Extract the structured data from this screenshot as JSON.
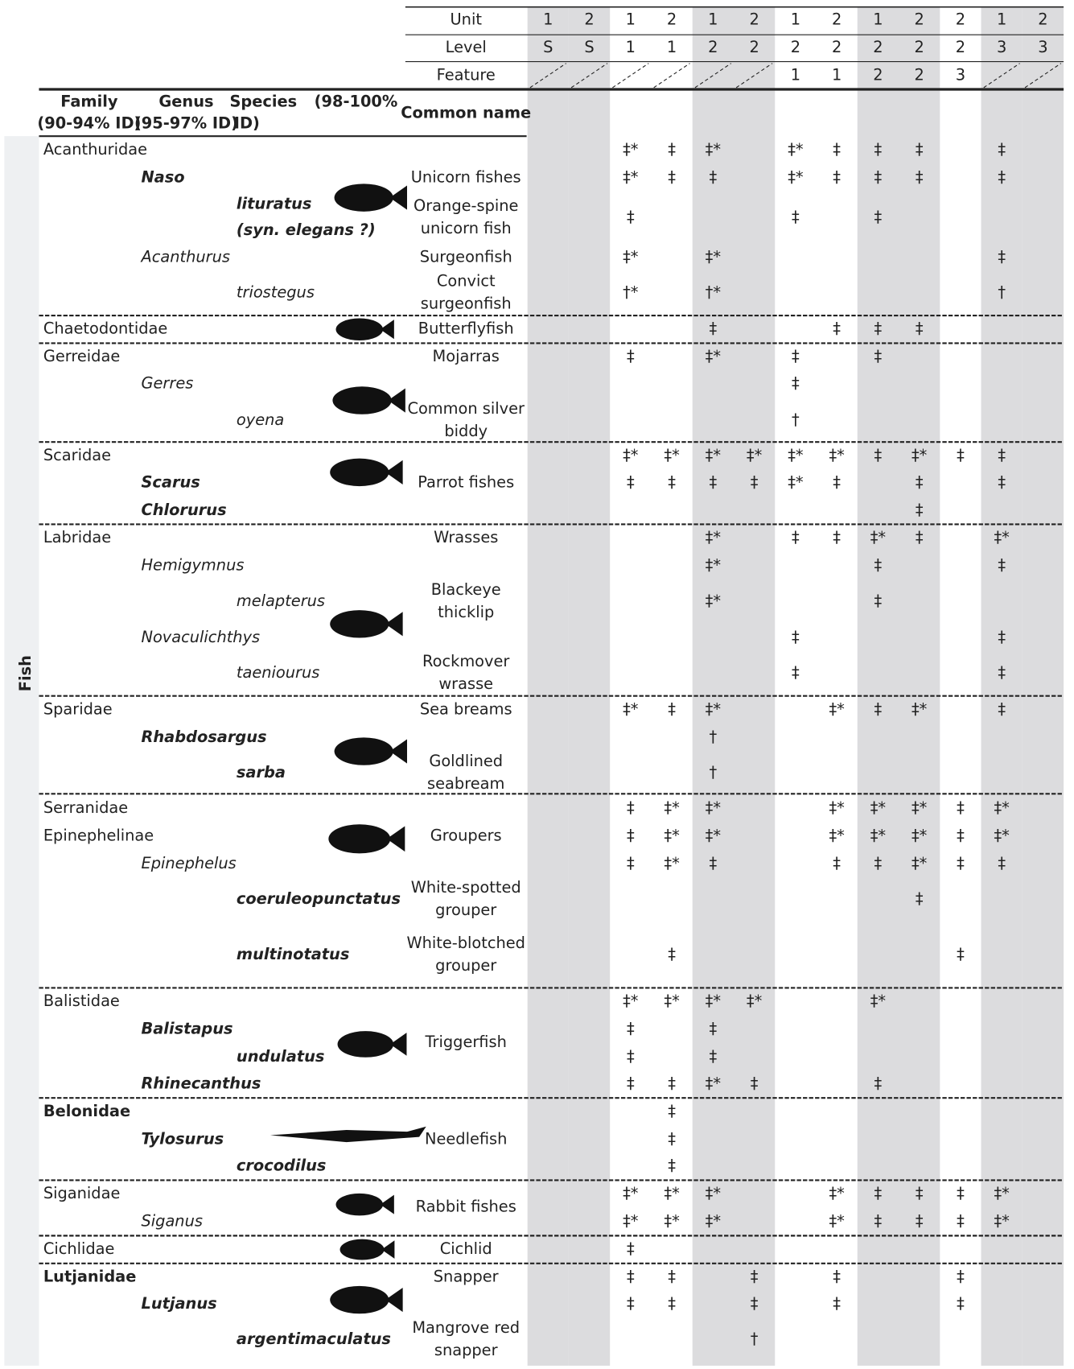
{
  "table": {
    "column_headers": {
      "row_labels": [
        "Unit",
        "Level",
        "Feature"
      ],
      "unit": [
        1,
        2,
        1,
        2,
        1,
        2,
        1,
        2,
        1,
        2,
        2,
        1,
        2
      ],
      "level": [
        "S",
        "S",
        1,
        1,
        2,
        2,
        2,
        2,
        2,
        2,
        2,
        3,
        3
      ],
      "feature": [
        null,
        null,
        null,
        null,
        null,
        null,
        1,
        1,
        2,
        2,
        3,
        null,
        null
      ]
    },
    "taxon_headers": {
      "family": [
        "Family",
        "(90-94% ID)"
      ],
      "genus": [
        "Genus",
        "(95-97% ID)"
      ],
      "species": [
        "Species",
        "(98-100%",
        "ID)"
      ],
      "common": "Common name"
    },
    "section": "Fish",
    "groups": [
      {
        "rows": [
          {
            "rank": "family",
            "bold": false,
            "name": "Acanthuridae",
            "cells": [
              null,
              null,
              "‡*",
              "‡",
              "‡*",
              null,
              "‡*",
              "‡",
              "‡",
              "‡",
              null,
              "‡",
              null
            ]
          },
          {
            "rank": "genus",
            "bold": true,
            "name": "Naso",
            "common": "Unicorn fishes",
            "cells": [
              null,
              null,
              "‡*",
              "‡",
              "‡",
              null,
              "‡*",
              "‡",
              "‡",
              "‡",
              null,
              "‡",
              null
            ]
          },
          {
            "rank": "species",
            "bold": true,
            "name": [
              "lituratus",
              "(syn. elegans ?)"
            ],
            "common": [
              "Orange-spine",
              "unicorn fish"
            ],
            "cells": [
              null,
              null,
              "‡",
              null,
              null,
              null,
              "‡",
              null,
              "‡",
              null,
              null,
              null,
              null
            ]
          },
          {
            "rank": "genus",
            "bold": false,
            "name": "Acanthurus",
            "common": "Surgeonfish",
            "cells": [
              null,
              null,
              "‡*",
              null,
              "‡*",
              null,
              null,
              null,
              null,
              null,
              null,
              "‡",
              null
            ]
          },
          {
            "rank": "species",
            "bold": false,
            "name": "triostegus",
            "common": [
              "Convict",
              "surgeonfish"
            ],
            "cells": [
              null,
              null,
              "†*",
              null,
              "†*",
              null,
              null,
              null,
              null,
              null,
              null,
              "†",
              null
            ]
          }
        ]
      },
      {
        "rows": [
          {
            "rank": "family",
            "bold": false,
            "name": "Chaetodontidae",
            "common": "Butterflyfish",
            "cells": [
              null,
              null,
              null,
              null,
              "‡",
              null,
              null,
              "‡",
              "‡",
              "‡",
              null,
              null,
              null
            ]
          }
        ]
      },
      {
        "rows": [
          {
            "rank": "family",
            "bold": false,
            "name": "Gerreidae",
            "common": "Mojarras",
            "cells": [
              null,
              null,
              "‡",
              null,
              "‡*",
              null,
              "‡",
              null,
              "‡",
              null,
              null,
              null,
              null
            ]
          },
          {
            "rank": "genus",
            "bold": false,
            "name": "Gerres",
            "cells": [
              null,
              null,
              null,
              null,
              null,
              null,
              "‡",
              null,
              null,
              null,
              null,
              null,
              null
            ]
          },
          {
            "rank": "species",
            "bold": false,
            "name": "oyena",
            "common": [
              "Common silver",
              "biddy"
            ],
            "cells": [
              null,
              null,
              null,
              null,
              null,
              null,
              "†",
              null,
              null,
              null,
              null,
              null,
              null
            ]
          }
        ]
      },
      {
        "rows": [
          {
            "rank": "family",
            "bold": false,
            "name": "Scaridae",
            "cells": [
              null,
              null,
              "‡*",
              "‡*",
              "‡*",
              "‡*",
              "‡*",
              "‡*",
              "‡",
              "‡*",
              "‡",
              "‡",
              null
            ]
          },
          {
            "rank": "genus",
            "bold": true,
            "name": "Scarus",
            "common": "Parrot fishes",
            "cells": [
              null,
              null,
              "‡",
              "‡",
              "‡",
              "‡",
              "‡*",
              "‡",
              null,
              "‡",
              null,
              "‡",
              null
            ]
          },
          {
            "rank": "genus",
            "bold": true,
            "name": "Chlorurus",
            "cells": [
              null,
              null,
              null,
              null,
              null,
              null,
              null,
              null,
              null,
              "‡",
              null,
              null,
              null
            ]
          }
        ]
      },
      {
        "rows": [
          {
            "rank": "family",
            "bold": false,
            "name": "Labridae",
            "common": "Wrasses",
            "cells": [
              null,
              null,
              null,
              null,
              "‡*",
              null,
              "‡",
              "‡",
              "‡*",
              "‡",
              null,
              "‡*",
              null
            ]
          },
          {
            "rank": "genus",
            "bold": false,
            "name": "Hemigymnus",
            "cells": [
              null,
              null,
              null,
              null,
              "‡*",
              null,
              null,
              null,
              "‡",
              null,
              null,
              "‡",
              null
            ]
          },
          {
            "rank": "species",
            "bold": false,
            "name": "melapterus",
            "common": [
              "Blackeye",
              "thicklip"
            ],
            "cells": [
              null,
              null,
              null,
              null,
              "‡*",
              null,
              null,
              null,
              "‡",
              null,
              null,
              null,
              null
            ]
          },
          {
            "rank": "genus",
            "bold": false,
            "name": "Novaculichthys",
            "cells": [
              null,
              null,
              null,
              null,
              null,
              null,
              "‡",
              null,
              null,
              null,
              null,
              "‡",
              null
            ]
          },
          {
            "rank": "species",
            "bold": false,
            "name": "taeniourus",
            "common": [
              "Rockmover",
              "wrasse"
            ],
            "cells": [
              null,
              null,
              null,
              null,
              null,
              null,
              "‡",
              null,
              null,
              null,
              null,
              "‡",
              null
            ]
          }
        ]
      },
      {
        "rows": [
          {
            "rank": "family",
            "bold": false,
            "name": "Sparidae",
            "common": "Sea breams",
            "cells": [
              null,
              null,
              "‡*",
              "‡",
              "‡*",
              null,
              null,
              "‡*",
              "‡",
              "‡*",
              null,
              "‡",
              null
            ]
          },
          {
            "rank": "genus",
            "bold": true,
            "name": "Rhabdosargus",
            "cells": [
              null,
              null,
              null,
              null,
              "†",
              null,
              null,
              null,
              null,
              null,
              null,
              null,
              null
            ]
          },
          {
            "rank": "species",
            "bold": true,
            "name": "sarba",
            "common": [
              "Goldlined",
              "seabream"
            ],
            "cells": [
              null,
              null,
              null,
              null,
              "†",
              null,
              null,
              null,
              null,
              null,
              null,
              null,
              null
            ]
          }
        ]
      },
      {
        "rows": [
          {
            "rank": "family",
            "bold": false,
            "name": "Serranidae",
            "cells": [
              null,
              null,
              "‡",
              "‡*",
              "‡*",
              null,
              null,
              "‡*",
              "‡*",
              "‡*",
              "‡",
              "‡*",
              null
            ]
          },
          {
            "rank": "family",
            "bold": false,
            "name": "Epinephelinae",
            "common": "Groupers",
            "cells": [
              null,
              null,
              "‡",
              "‡*",
              "‡*",
              null,
              null,
              "‡*",
              "‡*",
              "‡*",
              "‡",
              "‡*",
              null
            ]
          },
          {
            "rank": "genus",
            "bold": false,
            "name": "Epinephelus",
            "cells": [
              null,
              null,
              "‡",
              "‡*",
              "‡",
              null,
              null,
              "‡",
              "‡",
              "‡*",
              "‡",
              "‡",
              null
            ]
          },
          {
            "rank": "species",
            "bold": true,
            "name": "coeruleopunctatus",
            "common": [
              "White-spotted",
              "grouper"
            ],
            "cells": [
              null,
              null,
              null,
              null,
              null,
              null,
              null,
              null,
              null,
              "‡",
              null,
              null,
              null
            ]
          },
          {
            "rank": "species",
            "bold": true,
            "name": "multinotatus",
            "common": [
              "White-blotched",
              "grouper"
            ],
            "cells": [
              null,
              null,
              null,
              "‡",
              null,
              null,
              null,
              null,
              null,
              null,
              "‡",
              null,
              null
            ]
          }
        ]
      },
      {
        "common": "Triggerfish",
        "rows": [
          {
            "rank": "family",
            "bold": false,
            "name": "Balistidae",
            "cells": [
              null,
              null,
              "‡*",
              "‡*",
              "‡*",
              "‡*",
              null,
              null,
              "‡*",
              null,
              null,
              null,
              null
            ]
          },
          {
            "rank": "genus",
            "bold": true,
            "name": "Balistapus",
            "cells": [
              null,
              null,
              "‡",
              null,
              "‡",
              null,
              null,
              null,
              null,
              null,
              null,
              null,
              null
            ]
          },
          {
            "rank": "species",
            "bold": true,
            "name": "undulatus",
            "cells": [
              null,
              null,
              "‡",
              null,
              "‡",
              null,
              null,
              null,
              null,
              null,
              null,
              null,
              null
            ]
          },
          {
            "rank": "genus",
            "bold": true,
            "name": "Rhinecanthus",
            "cells": [
              null,
              null,
              "‡",
              "‡",
              "‡*",
              "‡",
              null,
              null,
              "‡",
              null,
              null,
              null,
              null
            ]
          }
        ]
      },
      {
        "rows": [
          {
            "rank": "family",
            "bold": true,
            "name": "Belonidae",
            "cells": [
              null,
              null,
              null,
              "‡",
              null,
              null,
              null,
              null,
              null,
              null,
              null,
              null,
              null
            ]
          },
          {
            "rank": "genus",
            "bold": true,
            "name": "Tylosurus",
            "common": "Needlefish",
            "cells": [
              null,
              null,
              null,
              "‡",
              null,
              null,
              null,
              null,
              null,
              null,
              null,
              null,
              null
            ]
          },
          {
            "rank": "species",
            "bold": true,
            "name": "crocodilus",
            "cells": [
              null,
              null,
              null,
              "‡",
              null,
              null,
              null,
              null,
              null,
              null,
              null,
              null,
              null
            ]
          }
        ]
      },
      {
        "common": "Rabbit fishes",
        "rows": [
          {
            "rank": "family",
            "bold": false,
            "name": "Siganidae",
            "cells": [
              null,
              null,
              "‡*",
              "‡*",
              "‡*",
              null,
              null,
              "‡*",
              "‡",
              "‡",
              "‡",
              "‡*",
              null
            ]
          },
          {
            "rank": "genus",
            "bold": false,
            "name": "Siganus",
            "cells": [
              null,
              null,
              "‡*",
              "‡*",
              "‡*",
              null,
              null,
              "‡*",
              "‡",
              "‡",
              "‡",
              "‡*",
              null
            ]
          }
        ]
      },
      {
        "rows": [
          {
            "rank": "family",
            "bold": false,
            "name": "Cichlidae",
            "common": "Cichlid",
            "cells": [
              null,
              null,
              "‡",
              null,
              null,
              null,
              null,
              null,
              null,
              null,
              null,
              null,
              null
            ]
          }
        ]
      },
      {
        "rows": [
          {
            "rank": "family",
            "bold": true,
            "name": "Lutjanidae",
            "common": "Snapper",
            "cells": [
              null,
              null,
              "‡",
              "‡",
              null,
              "‡",
              null,
              "‡",
              null,
              null,
              "‡",
              null,
              null
            ]
          },
          {
            "rank": "genus",
            "bold": true,
            "name": "Lutjanus",
            "cells": [
              null,
              null,
              "‡",
              "‡",
              null,
              "‡",
              null,
              "‡",
              null,
              null,
              "‡",
              null,
              null
            ]
          },
          {
            "rank": "species",
            "bold": true,
            "name": "argentimaculatus",
            "common": [
              "Mangrove red",
              "snapper"
            ],
            "cells": [
              null,
              null,
              null,
              null,
              null,
              "†",
              null,
              null,
              null,
              null,
              null,
              null,
              null
            ]
          }
        ]
      }
    ]
  }
}
